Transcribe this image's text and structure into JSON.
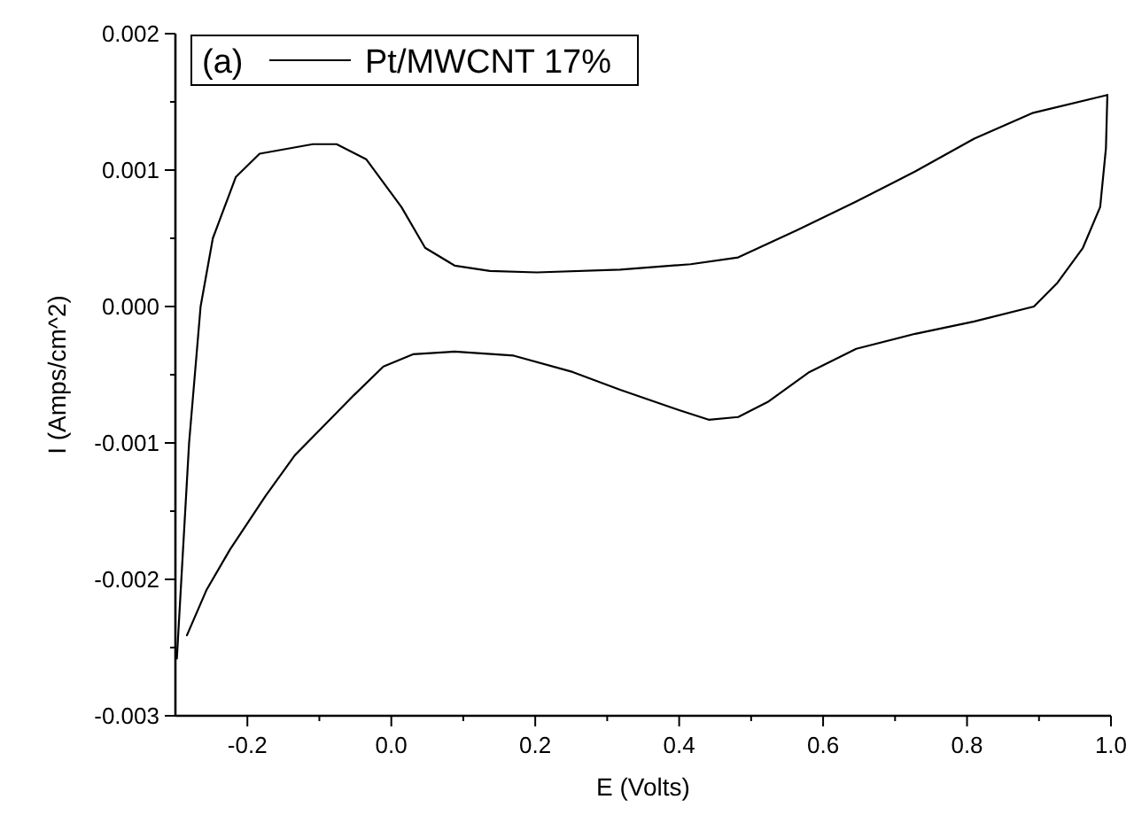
{
  "chart_data": {
    "type": "line",
    "xlabel": "E (Volts)",
    "ylabel": "I (Amps/cm^2)",
    "annotations": [
      "(a)"
    ],
    "series": [
      {
        "name": "Pt/MWCNT 17%",
        "color": "#000000",
        "x": [
          -0.298,
          -0.281,
          -0.265,
          -0.248,
          -0.216,
          -0.183,
          -0.109,
          -0.076,
          -0.035,
          0.014,
          0.047,
          0.088,
          0.137,
          0.202,
          0.318,
          0.416,
          0.482,
          0.564,
          0.646,
          0.728,
          0.81,
          0.892,
          0.995
        ],
        "values": [
          -0.00258,
          -0.001,
          0,
          0.0005,
          0.00095,
          0.00112,
          0.00119,
          0.00119,
          0.00108,
          0.00073,
          0.00043,
          0.0003,
          0.00026,
          0.00025,
          0.00027,
          0.00031,
          0.00036,
          0.00056,
          0.00077,
          0.00099,
          0.00123,
          0.00142,
          0.00155
        ]
      },
      {
        "color": "#000000",
        "x": [
          0.995,
          0.993,
          0.985,
          0.961,
          0.925,
          0.893,
          0.81,
          0.728,
          0.646,
          0.581,
          0.523,
          0.482,
          0.441,
          0.4,
          0.318,
          0.252,
          0.17,
          0.088,
          0.03,
          -0.011,
          -0.052,
          -0.093,
          -0.134,
          -0.175,
          -0.224,
          -0.257,
          -0.284
        ],
        "values": [
          0.00155,
          0.00116,
          0.00073,
          0.00043,
          0.00017,
          0,
          -0.00011,
          -0.0002,
          -0.00031,
          -0.00048,
          -0.0007,
          -0.00081,
          -0.00083,
          -0.00076,
          -0.00061,
          -0.00048,
          -0.00036,
          -0.00033,
          -0.00035,
          -0.00044,
          -0.00065,
          -0.00087,
          -0.00109,
          -0.00139,
          -0.00178,
          -0.00208,
          -0.00241
        ]
      }
    ],
    "xlim": [
      -0.3,
      1.0
    ],
    "xticks": [
      -0.2,
      {
        "value": -0.1,
        "label": null
      },
      {
        "value": 0,
        "label": "0.0"
      },
      {
        "value": 0.1,
        "label": null
      },
      0.2,
      {
        "value": 0.3,
        "label": null
      },
      0.4,
      {
        "value": 0.5,
        "label": null
      },
      0.6,
      {
        "value": 0.7,
        "label": null
      },
      0.8,
      {
        "value": 0.9,
        "label": null
      },
      {
        "value": 1,
        "label": "1.0"
      }
    ],
    "ylim": [
      -0.003,
      0.002
    ],
    "yticks": [
      -0.003,
      {
        "value": -0.0025,
        "label": null
      },
      -0.002,
      {
        "value": -0.0015,
        "label": null
      },
      -0.001,
      {
        "value": -0.0005,
        "label": null
      },
      {
        "value": 0,
        "label": "0.000"
      },
      {
        "value": 0.0005,
        "label": null
      },
      0.001,
      {
        "value": 0.0015,
        "label": null
      },
      0.002
    ],
    "legend": "top left",
    "grid": false,
    "marker": "none",
    "line_style": "solid"
  }
}
